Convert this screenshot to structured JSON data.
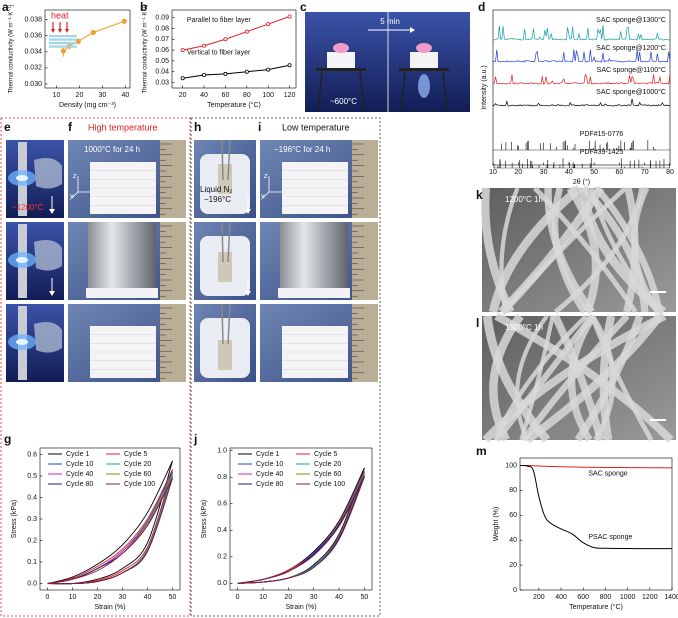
{
  "panel_labels": [
    "a",
    "b",
    "c",
    "d",
    "e",
    "f",
    "g",
    "h",
    "i",
    "j",
    "k",
    "l",
    "m"
  ],
  "photos": {
    "c": {
      "time": "5 min",
      "temp": "~600°C"
    },
    "d": {
      "temp": "~1200°C"
    },
    "e": {
      "title": "High temperature",
      "condition": "1000°C for 24 h"
    },
    "g": {
      "medium": "Liquid N₂",
      "temp": "−196°C"
    },
    "h": {
      "title": "Low temperature",
      "condition": "−196°C for 24 h"
    },
    "axes": [
      "z",
      "y",
      "x"
    ],
    "k": "1200°C 1h",
    "l": "1300°C 1h"
  },
  "chart_data": [
    {
      "type": "line",
      "xlabel": "Density (mg cm⁻³)",
      "ylabel": "Thermal conductivity (W m⁻¹ K⁻¹)",
      "annotation": "heat",
      "x": [
        13,
        15.5,
        19.5,
        26,
        39.5
      ],
      "series": [
        {
          "color": "#f0a030",
          "values": [
            0.0341,
            0.0347,
            0.0353,
            0.0364,
            0.0378
          ],
          "errors": [
            0.0007,
            0.0004,
            0.0004,
            0.0003,
            0.0003
          ]
        }
      ],
      "xlim": [
        5,
        42
      ],
      "ylim": [
        0.0295,
        0.0392
      ],
      "xticks": [
        10,
        20,
        30,
        40
      ],
      "yticks": [
        {
          "value": 0.03,
          "label": "0.030"
        },
        {
          "value": 0.032,
          "label": "0.032"
        },
        {
          "value": 0.034,
          "label": "0.034"
        },
        {
          "value": 0.036,
          "label": "0.036"
        },
        {
          "value": 0.038,
          "label": "0.038"
        }
      ],
      "markers": true
    },
    {
      "type": "line",
      "xlabel": "Temperature (°C)",
      "ylabel": "Thermal conductivity (W m⁻¹ K⁻¹)",
      "x": [
        20,
        40,
        60,
        80,
        100,
        120
      ],
      "series": [
        {
          "name": "Parallel to fiber layer",
          "color": "#e02020",
          "values": [
            0.06,
            0.064,
            0.07,
            0.077,
            0.084,
            0.091
          ]
        },
        {
          "name": "Vertical to fiber layer",
          "color": "#000000",
          "values": [
            0.034,
            0.037,
            0.038,
            0.04,
            0.042,
            0.046
          ]
        }
      ],
      "xlim": [
        10,
        126
      ],
      "ylim": [
        0.025,
        0.097
      ],
      "xticks": [
        20,
        40,
        60,
        80,
        100,
        120
      ],
      "yticks": [
        0.03,
        0.04,
        0.05,
        0.06,
        0.07,
        0.08,
        0.09
      ],
      "markers": true
    },
    {
      "type": "xrd",
      "xlabel": "2θ (°)",
      "ylabel": "Intensity (a.u.)",
      "xlim": [
        10,
        80
      ],
      "xticks": [
        10,
        20,
        30,
        40,
        50,
        60,
        70,
        80
      ],
      "annotations": [
        "SAC sponge@1300°C",
        "SAC sponge@1200°C",
        "SAC sponge@1100°C",
        "SAC sponge@1000°C",
        "PDF#15-0776",
        "PDF#39-1425"
      ],
      "colors": [
        "#1aa0a0",
        "#1f3fd0",
        "#e02020",
        "#000000"
      ]
    },
    {
      "type": "hysteresis",
      "xlabel": "Strain (%)",
      "ylabel": "Stress (kPa)",
      "x": [
        0,
        10,
        20,
        30,
        40,
        50
      ],
      "series": [
        {
          "name": "Cycle 1",
          "color": "#000000",
          "loading": [
            0,
            0.03,
            0.09,
            0.18,
            0.33,
            0.57
          ],
          "unloading": [
            0,
            0,
            0.02,
            0.07,
            0.19,
            0.57
          ]
        },
        {
          "name": "Cycle 5",
          "color": "#e02020",
          "loading": [
            0,
            0.025,
            0.08,
            0.16,
            0.3,
            0.53
          ],
          "unloading": [
            0,
            0,
            0.015,
            0.06,
            0.17,
            0.53
          ]
        },
        {
          "name": "Cycle 10",
          "color": "#1f3fd0",
          "loading": [
            0,
            0.02,
            0.07,
            0.15,
            0.29,
            0.52
          ],
          "unloading": [
            0,
            0,
            0.01,
            0.05,
            0.16,
            0.52
          ]
        },
        {
          "name": "Cycle 20",
          "color": "#1aa0a0",
          "loading": [
            0,
            0.02,
            0.07,
            0.15,
            0.28,
            0.51
          ],
          "unloading": [
            0,
            0,
            0.01,
            0.05,
            0.16,
            0.51
          ]
        },
        {
          "name": "Cycle 40",
          "color": "#d020d0",
          "loading": [
            0,
            0.02,
            0.07,
            0.15,
            0.28,
            0.5
          ],
          "unloading": [
            0,
            0,
            0.01,
            0.05,
            0.15,
            0.5
          ]
        },
        {
          "name": "Cycle 60",
          "color": "#8a8a10",
          "loading": [
            0,
            0.02,
            0.07,
            0.14,
            0.28,
            0.5
          ],
          "unloading": [
            0,
            0,
            0.01,
            0.05,
            0.15,
            0.5
          ]
        },
        {
          "name": "Cycle 80",
          "color": "#1a1a80",
          "loading": [
            0,
            0.02,
            0.07,
            0.14,
            0.27,
            0.49
          ],
          "unloading": [
            0,
            0,
            0.01,
            0.05,
            0.15,
            0.49
          ]
        },
        {
          "name": "Cycle 100",
          "color": "#8b1a3a",
          "loading": [
            0,
            0.02,
            0.06,
            0.14,
            0.27,
            0.49
          ],
          "unloading": [
            0,
            0,
            0.01,
            0.05,
            0.15,
            0.49
          ]
        }
      ],
      "xlim": [
        -3,
        53
      ],
      "ylim": [
        -0.03,
        0.63
      ],
      "xticks": [
        0,
        10,
        20,
        30,
        40,
        50
      ],
      "yticks": [
        {
          "value": 0,
          "label": "0.0"
        },
        0.1,
        0.2,
        0.3,
        0.4,
        0.5,
        0.6
      ]
    },
    {
      "type": "hysteresis",
      "xlabel": "Strain (%)",
      "ylabel": "Stress (kPa)",
      "x": [
        0,
        10,
        20,
        30,
        40,
        50
      ],
      "series": [
        {
          "name": "Cycle 1",
          "color": "#000000",
          "loading": [
            0,
            0.03,
            0.1,
            0.24,
            0.47,
            0.87
          ],
          "unloading": [
            0,
            0.01,
            0.04,
            0.14,
            0.37,
            0.87
          ]
        },
        {
          "name": "Cycle 5",
          "color": "#e02020",
          "loading": [
            0,
            0.03,
            0.1,
            0.23,
            0.46,
            0.85
          ],
          "unloading": [
            0,
            0.01,
            0.04,
            0.13,
            0.36,
            0.85
          ]
        },
        {
          "name": "Cycle 10",
          "color": "#1f3fd0",
          "loading": [
            0,
            0.03,
            0.09,
            0.23,
            0.45,
            0.84
          ],
          "unloading": [
            0,
            0.01,
            0.04,
            0.13,
            0.35,
            0.84
          ]
        },
        {
          "name": "Cycle 20",
          "color": "#1aa0a0",
          "loading": [
            0,
            0.03,
            0.09,
            0.22,
            0.45,
            0.83
          ],
          "unloading": [
            0,
            0.01,
            0.04,
            0.13,
            0.35,
            0.83
          ]
        },
        {
          "name": "Cycle 40",
          "color": "#d020d0",
          "loading": [
            0,
            0.03,
            0.09,
            0.22,
            0.44,
            0.82
          ],
          "unloading": [
            0,
            0.01,
            0.04,
            0.12,
            0.34,
            0.82
          ]
        },
        {
          "name": "Cycle 60",
          "color": "#8a8a10",
          "loading": [
            0,
            0.03,
            0.09,
            0.22,
            0.44,
            0.82
          ],
          "unloading": [
            0,
            0.01,
            0.04,
            0.12,
            0.34,
            0.82
          ]
        },
        {
          "name": "Cycle 80",
          "color": "#1a1a80",
          "loading": [
            0,
            0.03,
            0.09,
            0.22,
            0.44,
            0.81
          ],
          "unloading": [
            0,
            0.01,
            0.04,
            0.12,
            0.34,
            0.81
          ]
        },
        {
          "name": "Cycle 100",
          "color": "#8b1a3a",
          "loading": [
            0,
            0.03,
            0.09,
            0.21,
            0.43,
            0.8
          ],
          "unloading": [
            0,
            0.01,
            0.04,
            0.12,
            0.33,
            0.8
          ]
        }
      ],
      "xlim": [
        -3,
        53
      ],
      "ylim": [
        -0.05,
        1.02
      ],
      "xticks": [
        0,
        10,
        20,
        30,
        40,
        50
      ],
      "yticks": [
        {
          "value": 0,
          "label": "0.0"
        },
        0.2,
        0.4,
        0.6,
        0.8,
        {
          "value": 1,
          "label": "1.0"
        }
      ]
    },
    {
      "type": "line",
      "xlabel": "Temperature (°C)",
      "ylabel": "Weight (%)",
      "x": [
        30,
        100,
        150,
        200,
        250,
        300,
        400,
        500,
        600,
        700,
        800,
        1000,
        1200,
        1400
      ],
      "series": [
        {
          "name": "SAC sponge",
          "color": "#e02020",
          "values": [
            100,
            100,
            99.8,
            99.6,
            99.4,
            99.2,
            99,
            98.8,
            98.6,
            98.5,
            98.4,
            98.3,
            98.2,
            98.1
          ]
        },
        {
          "name": "PSAC sponge",
          "color": "#000000",
          "values": [
            100,
            99.5,
            96,
            75,
            60,
            54,
            49,
            45,
            38,
            34,
            33.5,
            33.3,
            33.2,
            33.2
          ]
        }
      ],
      "xlim": [
        30,
        1400
      ],
      "ylim": [
        0,
        106
      ],
      "xticks": [
        200,
        400,
        600,
        800,
        1000,
        1200,
        1400
      ],
      "yticks": [
        0,
        20,
        40,
        60,
        80,
        100
      ],
      "markers": false
    }
  ]
}
